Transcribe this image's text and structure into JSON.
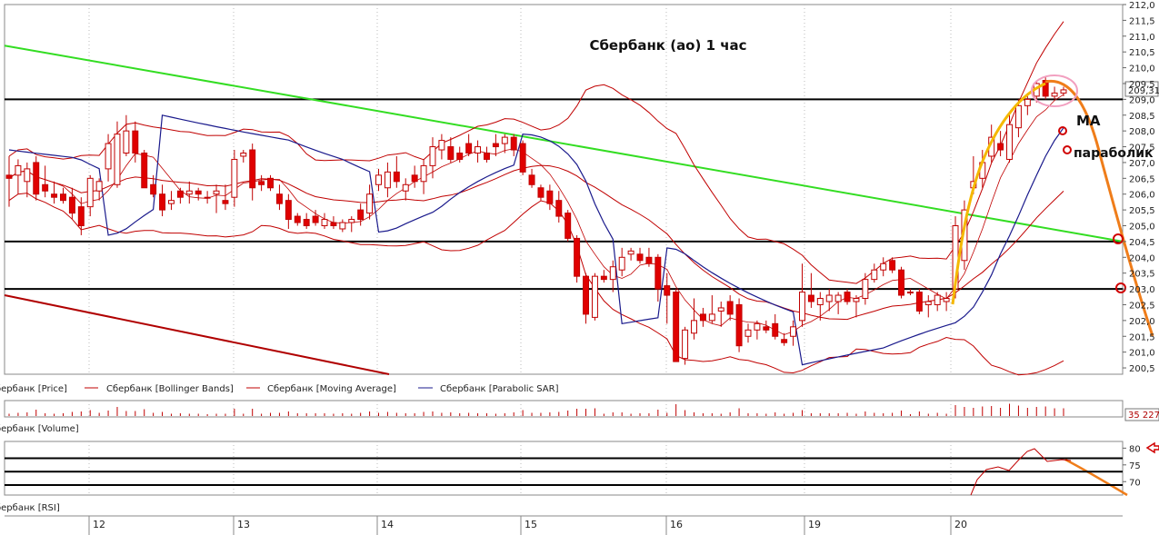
{
  "chart_data": {
    "type": "candlestick",
    "title": "Сбербанк (ао)   1 час",
    "price_axis": {
      "ylim": [
        200.3,
        212.0
      ],
      "ticks": [
        "212,0",
        "211,5",
        "211,0",
        "210,5",
        "210,0",
        "209,5",
        "209,0",
        "208,5",
        "208,0",
        "207,5",
        "207,0",
        "206,5",
        "206,0",
        "205,5",
        "205,0",
        "204,5",
        "204,0",
        "203,5",
        "203,0",
        "202,5",
        "202,0",
        "201,5",
        "201,0",
        "200,5"
      ],
      "last_price_label": "209,31"
    },
    "date_labels": [
      "12",
      "13",
      "14",
      "15",
      "16",
      "19",
      "20"
    ],
    "legend": {
      "price": "Сбербанк [Price]",
      "bollinger": "Сбербанк [Bollinger Bands]",
      "ma": "Сбербанк [Moving Average]",
      "sar": "Сбербанк [Parabolic SAR]",
      "volume": "Сбербанк [Volume]",
      "rsi": "Сбербанк [RSI]"
    },
    "volume_label": "35 227",
    "rsi_axis": {
      "ticks": [
        "80",
        "75",
        "70"
      ],
      "ylim": [
        66,
        82
      ]
    },
    "annotations": {
      "ma": "МА",
      "parabolic": "параболик"
    },
    "horizontal_levels": [
      209.0,
      204.5,
      203.0
    ],
    "candles": [
      {
        "o": 206.6,
        "h": 207.2,
        "l": 205.6,
        "c": 206.5
      },
      {
        "o": 206.6,
        "h": 207.1,
        "l": 206.0,
        "c": 206.9
      },
      {
        "o": 206.4,
        "h": 207.0,
        "l": 205.9,
        "c": 206.8
      },
      {
        "o": 207.0,
        "h": 207.2,
        "l": 205.8,
        "c": 206.0
      },
      {
        "o": 206.3,
        "h": 206.9,
        "l": 205.9,
        "c": 206.1
      },
      {
        "o": 206.0,
        "h": 206.4,
        "l": 205.7,
        "c": 205.9
      },
      {
        "o": 206.0,
        "h": 206.2,
        "l": 205.7,
        "c": 205.8
      },
      {
        "o": 205.9,
        "h": 206.2,
        "l": 205.2,
        "c": 205.4
      },
      {
        "o": 205.6,
        "h": 205.9,
        "l": 204.7,
        "c": 205.0
      },
      {
        "o": 205.6,
        "h": 206.6,
        "l": 205.3,
        "c": 206.5
      },
      {
        "o": 206.1,
        "h": 206.5,
        "l": 205.8,
        "c": 206.4
      },
      {
        "o": 206.8,
        "h": 207.9,
        "l": 206.4,
        "c": 207.6
      },
      {
        "o": 206.3,
        "h": 208.3,
        "l": 206.2,
        "c": 207.9
      },
      {
        "o": 207.3,
        "h": 208.5,
        "l": 207.2,
        "c": 208.0
      },
      {
        "o": 208.0,
        "h": 208.3,
        "l": 207.0,
        "c": 207.3
      },
      {
        "o": 207.3,
        "h": 207.4,
        "l": 206.2,
        "c": 206.2
      },
      {
        "o": 206.3,
        "h": 206.6,
        "l": 205.9,
        "c": 206.0
      },
      {
        "o": 206.0,
        "h": 206.3,
        "l": 205.3,
        "c": 205.5
      },
      {
        "o": 205.7,
        "h": 206.1,
        "l": 205.5,
        "c": 205.8
      },
      {
        "o": 206.1,
        "h": 206.2,
        "l": 205.7,
        "c": 205.9
      },
      {
        "o": 206.0,
        "h": 206.4,
        "l": 205.7,
        "c": 206.1
      },
      {
        "o": 206.1,
        "h": 206.2,
        "l": 205.8,
        "c": 206.0
      },
      {
        "o": 205.9,
        "h": 206.1,
        "l": 205.7,
        "c": 205.9
      },
      {
        "o": 206.0,
        "h": 206.3,
        "l": 205.4,
        "c": 206.1
      },
      {
        "o": 205.8,
        "h": 206.3,
        "l": 205.5,
        "c": 205.7
      },
      {
        "o": 205.9,
        "h": 207.4,
        "l": 205.6,
        "c": 207.1
      },
      {
        "o": 207.2,
        "h": 207.4,
        "l": 207.0,
        "c": 207.3
      },
      {
        "o": 207.4,
        "h": 207.6,
        "l": 205.8,
        "c": 206.2
      },
      {
        "o": 206.4,
        "h": 206.6,
        "l": 206.1,
        "c": 206.3
      },
      {
        "o": 206.5,
        "h": 206.6,
        "l": 206.1,
        "c": 206.2
      },
      {
        "o": 206.0,
        "h": 206.3,
        "l": 205.5,
        "c": 205.7
      },
      {
        "o": 205.8,
        "h": 206.0,
        "l": 204.9,
        "c": 205.2
      },
      {
        "o": 205.3,
        "h": 205.4,
        "l": 205.0,
        "c": 205.1
      },
      {
        "o": 205.2,
        "h": 205.4,
        "l": 204.9,
        "c": 205.0
      },
      {
        "o": 205.3,
        "h": 205.5,
        "l": 205.0,
        "c": 205.1
      },
      {
        "o": 205.0,
        "h": 205.4,
        "l": 204.9,
        "c": 205.2
      },
      {
        "o": 205.1,
        "h": 205.3,
        "l": 204.9,
        "c": 205.0
      },
      {
        "o": 204.9,
        "h": 205.2,
        "l": 204.8,
        "c": 205.1
      },
      {
        "o": 205.1,
        "h": 205.3,
        "l": 204.8,
        "c": 205.2
      },
      {
        "o": 205.5,
        "h": 205.7,
        "l": 205.0,
        "c": 205.2
      },
      {
        "o": 205.4,
        "h": 206.3,
        "l": 205.2,
        "c": 206.0
      },
      {
        "o": 206.3,
        "h": 206.8,
        "l": 206.1,
        "c": 206.6
      },
      {
        "o": 206.2,
        "h": 207.0,
        "l": 205.9,
        "c": 206.7
      },
      {
        "o": 206.7,
        "h": 207.2,
        "l": 206.2,
        "c": 206.4
      },
      {
        "o": 206.1,
        "h": 206.5,
        "l": 205.8,
        "c": 206.3
      },
      {
        "o": 206.6,
        "h": 206.9,
        "l": 206.2,
        "c": 206.4
      },
      {
        "o": 206.4,
        "h": 207.1,
        "l": 206.0,
        "c": 206.9
      },
      {
        "o": 206.9,
        "h": 207.8,
        "l": 206.5,
        "c": 207.5
      },
      {
        "o": 207.4,
        "h": 207.9,
        "l": 207.1,
        "c": 207.7
      },
      {
        "o": 207.5,
        "h": 207.8,
        "l": 207.0,
        "c": 207.1
      },
      {
        "o": 207.3,
        "h": 207.5,
        "l": 207.0,
        "c": 207.1
      },
      {
        "o": 207.6,
        "h": 207.9,
        "l": 207.2,
        "c": 207.3
      },
      {
        "o": 207.3,
        "h": 207.7,
        "l": 207.0,
        "c": 207.5
      },
      {
        "o": 207.3,
        "h": 207.5,
        "l": 207.0,
        "c": 207.1
      },
      {
        "o": 207.6,
        "h": 207.9,
        "l": 207.2,
        "c": 207.5
      },
      {
        "o": 207.6,
        "h": 207.9,
        "l": 207.3,
        "c": 207.8
      },
      {
        "o": 207.8,
        "h": 207.9,
        "l": 207.2,
        "c": 207.4
      },
      {
        "o": 207.6,
        "h": 207.7,
        "l": 206.6,
        "c": 206.7
      },
      {
        "o": 206.6,
        "h": 206.8,
        "l": 206.2,
        "c": 206.3
      },
      {
        "o": 206.2,
        "h": 206.3,
        "l": 205.8,
        "c": 205.9
      },
      {
        "o": 206.1,
        "h": 206.3,
        "l": 205.5,
        "c": 205.7
      },
      {
        "o": 205.8,
        "h": 206.1,
        "l": 205.1,
        "c": 205.3
      },
      {
        "o": 205.4,
        "h": 205.5,
        "l": 204.5,
        "c": 204.6
      },
      {
        "o": 204.6,
        "h": 204.7,
        "l": 203.2,
        "c": 203.4
      },
      {
        "o": 203.4,
        "h": 203.5,
        "l": 201.9,
        "c": 202.2
      },
      {
        "o": 202.1,
        "h": 203.5,
        "l": 202.0,
        "c": 203.4
      },
      {
        "o": 203.4,
        "h": 203.6,
        "l": 203.2,
        "c": 203.3
      },
      {
        "o": 203.3,
        "h": 203.9,
        "l": 202.9,
        "c": 203.7
      },
      {
        "o": 203.6,
        "h": 204.3,
        "l": 203.4,
        "c": 204.0
      },
      {
        "o": 204.1,
        "h": 204.3,
        "l": 203.9,
        "c": 204.2
      },
      {
        "o": 204.1,
        "h": 204.3,
        "l": 203.8,
        "c": 203.9
      },
      {
        "o": 204.0,
        "h": 204.3,
        "l": 203.7,
        "c": 203.8
      },
      {
        "o": 204.0,
        "h": 204.1,
        "l": 202.6,
        "c": 203.0
      },
      {
        "o": 203.1,
        "h": 203.5,
        "l": 201.9,
        "c": 202.8
      },
      {
        "o": 202.9,
        "h": 203.0,
        "l": 200.7,
        "c": 200.7
      },
      {
        "o": 200.8,
        "h": 201.8,
        "l": 200.6,
        "c": 201.7
      },
      {
        "o": 201.6,
        "h": 202.7,
        "l": 201.4,
        "c": 202.0
      },
      {
        "o": 202.2,
        "h": 202.4,
        "l": 201.8,
        "c": 202.0
      },
      {
        "o": 202.0,
        "h": 202.8,
        "l": 201.9,
        "c": 202.2
      },
      {
        "o": 202.3,
        "h": 202.6,
        "l": 201.8,
        "c": 202.4
      },
      {
        "o": 202.6,
        "h": 202.8,
        "l": 202.0,
        "c": 202.2
      },
      {
        "o": 202.5,
        "h": 202.7,
        "l": 201.0,
        "c": 201.2
      },
      {
        "o": 201.5,
        "h": 201.9,
        "l": 201.3,
        "c": 201.7
      },
      {
        "o": 201.7,
        "h": 202.0,
        "l": 201.4,
        "c": 201.9
      },
      {
        "o": 201.8,
        "h": 202.0,
        "l": 201.6,
        "c": 201.7
      },
      {
        "o": 201.9,
        "h": 202.2,
        "l": 201.4,
        "c": 201.5
      },
      {
        "o": 201.4,
        "h": 201.6,
        "l": 201.2,
        "c": 201.3
      },
      {
        "o": 201.5,
        "h": 202.0,
        "l": 201.2,
        "c": 201.8
      },
      {
        "o": 202.0,
        "h": 203.8,
        "l": 201.8,
        "c": 202.9
      },
      {
        "o": 202.8,
        "h": 203.5,
        "l": 202.4,
        "c": 202.6
      },
      {
        "o": 202.5,
        "h": 202.9,
        "l": 202.0,
        "c": 202.7
      },
      {
        "o": 202.6,
        "h": 203.0,
        "l": 202.3,
        "c": 202.8
      },
      {
        "o": 202.6,
        "h": 202.9,
        "l": 202.2,
        "c": 202.8
      },
      {
        "o": 202.9,
        "h": 203.0,
        "l": 202.5,
        "c": 202.6
      },
      {
        "o": 202.6,
        "h": 202.8,
        "l": 202.1,
        "c": 202.7
      },
      {
        "o": 202.7,
        "h": 203.5,
        "l": 202.5,
        "c": 203.3
      },
      {
        "o": 203.3,
        "h": 203.8,
        "l": 203.2,
        "c": 203.6
      },
      {
        "o": 203.6,
        "h": 204.0,
        "l": 203.4,
        "c": 203.8
      },
      {
        "o": 203.9,
        "h": 204.0,
        "l": 203.5,
        "c": 203.6
      },
      {
        "o": 203.6,
        "h": 203.7,
        "l": 202.7,
        "c": 202.8
      },
      {
        "o": 202.9,
        "h": 203.0,
        "l": 202.8,
        "c": 202.9
      },
      {
        "o": 202.9,
        "h": 203.0,
        "l": 202.2,
        "c": 202.3
      },
      {
        "o": 202.5,
        "h": 202.8,
        "l": 202.1,
        "c": 202.6
      },
      {
        "o": 202.5,
        "h": 202.9,
        "l": 202.3,
        "c": 202.8
      },
      {
        "o": 202.6,
        "h": 202.9,
        "l": 202.3,
        "c": 202.7
      },
      {
        "o": 203.0,
        "h": 205.3,
        "l": 202.7,
        "c": 205.0
      },
      {
        "o": 203.9,
        "h": 205.8,
        "l": 203.6,
        "c": 205.5
      },
      {
        "o": 206.2,
        "h": 207.2,
        "l": 206.0,
        "c": 206.4
      },
      {
        "o": 206.5,
        "h": 207.4,
        "l": 206.2,
        "c": 207.0
      },
      {
        "o": 207.2,
        "h": 208.2,
        "l": 207.0,
        "c": 207.8
      },
      {
        "o": 207.6,
        "h": 208.0,
        "l": 207.2,
        "c": 207.4
      },
      {
        "o": 207.1,
        "h": 208.6,
        "l": 207.0,
        "c": 208.2
      },
      {
        "o": 208.1,
        "h": 209.0,
        "l": 207.8,
        "c": 208.8
      },
      {
        "o": 208.8,
        "h": 209.1,
        "l": 208.5,
        "c": 209.0
      },
      {
        "o": 209.1,
        "h": 209.6,
        "l": 208.9,
        "c": 209.5
      },
      {
        "o": 209.6,
        "h": 209.7,
        "l": 209.0,
        "c": 209.1
      },
      {
        "o": 209.1,
        "h": 209.4,
        "l": 209.0,
        "c": 209.2
      },
      {
        "o": 209.2,
        "h": 209.4,
        "l": 209.1,
        "c": 209.3
      }
    ]
  }
}
